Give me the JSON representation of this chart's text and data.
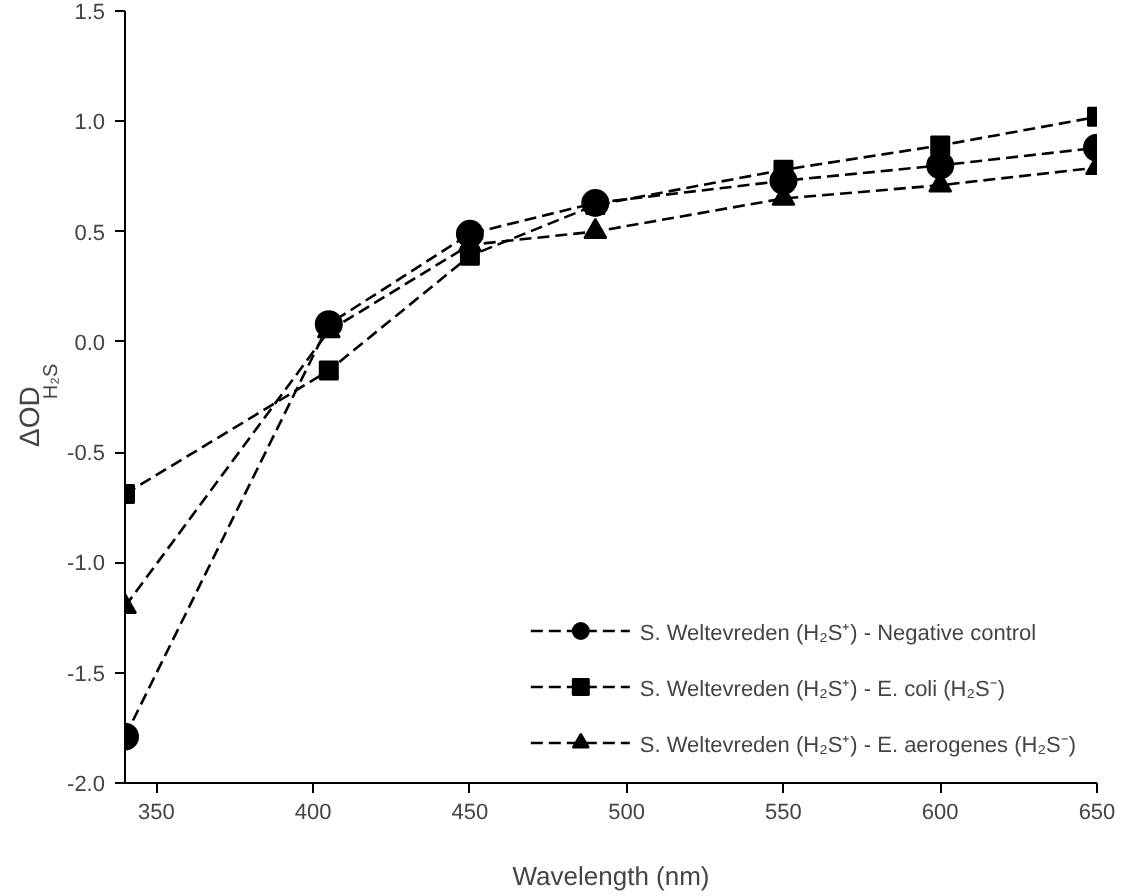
{
  "chart_data": {
    "type": "line",
    "xlabel": "Wavelength (nm)",
    "ylabel": "ΔOD$_{H₂S}$",
    "x": [
      340,
      405,
      450,
      490,
      550,
      600,
      650
    ],
    "series": [
      {
        "name": "S. Weltevreden (H₂S⁺) - Negative control",
        "color": "#000000",
        "marker": "circle",
        "values": [
          -1.79,
          0.08,
          0.49,
          0.63,
          0.73,
          0.8,
          0.88
        ]
      },
      {
        "name": "S. Weltevreden (H₂S⁺) - E. coli (H₂S⁻)",
        "color": "#000000",
        "marker": "square",
        "values": [
          -0.69,
          -0.13,
          0.39,
          0.62,
          0.78,
          0.89,
          1.02
        ]
      },
      {
        "name": "S. Weltevreden (H₂S⁺) - E. aerogenes (H₂S⁻)",
        "color": "#000000",
        "marker": "triangle",
        "values": [
          -1.2,
          0.05,
          0.44,
          0.5,
          0.65,
          0.71,
          0.79
        ]
      }
    ],
    "xlim": [
      340,
      650
    ],
    "ylim": [
      -2.0,
      1.5
    ],
    "xticks": [
      350,
      400,
      450,
      500,
      550,
      600,
      650
    ],
    "yticks": [
      {
        "value": -2.0,
        "label": "-2.0"
      },
      {
        "value": -1.5,
        "label": "-1.5"
      },
      {
        "value": -1.0,
        "label": "-1.0"
      },
      {
        "value": -0.5,
        "label": "-0.5"
      },
      {
        "value": 0.0,
        "label": "0.0"
      },
      {
        "value": 0.5,
        "label": "0.5"
      },
      {
        "value": 1.0,
        "label": "1.0"
      },
      {
        "value": 1.5,
        "label": "1.5"
      }
    ],
    "line_style": "dashed",
    "legend": "bottom right",
    "grid": false
  }
}
